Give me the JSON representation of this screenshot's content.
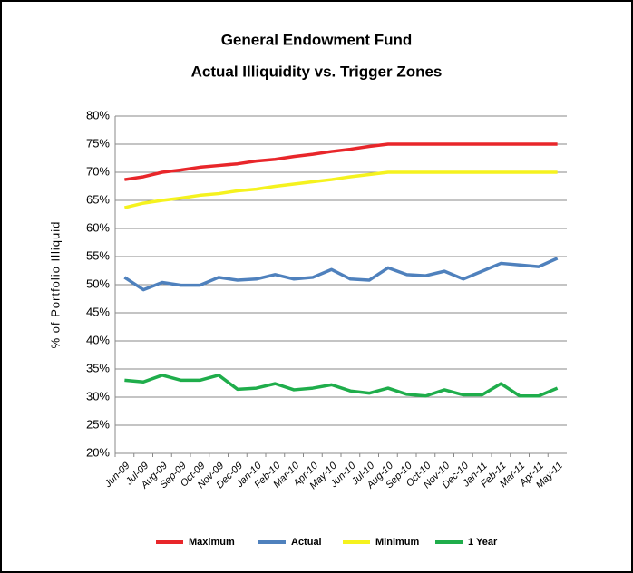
{
  "chart_data": {
    "type": "line",
    "title": "General Endowment Fund",
    "subtitle": "Actual Illiquidity vs. Trigger Zones",
    "y_label": "% of Portfolio Illiquid",
    "categories": [
      "Jun-09",
      "Jul-09",
      "Aug-09",
      "Sep-09",
      "Oct-09",
      "Nov-09",
      "Dec-09",
      "Jan-10",
      "Feb-10",
      "Mar-10",
      "Apr-10",
      "May-10",
      "Jun-10",
      "Jul-10",
      "Aug-10",
      "Sep-10",
      "Oct-10",
      "Nov-10",
      "Dec-10",
      "Jan-11",
      "Feb-11",
      "Mar-11",
      "Apr-11",
      "May-11"
    ],
    "series": [
      {
        "name": "Maximum",
        "color": "#e8262a",
        "values": [
          68.7,
          69.2,
          70,
          70.4,
          70.9,
          71.2,
          71.5,
          72,
          72.3,
          72.8,
          73.2,
          73.7,
          74.1,
          74.6,
          75,
          75,
          75,
          75,
          75,
          75,
          75,
          75,
          75,
          75
        ]
      },
      {
        "name": "Actual",
        "color": "#4f81bd",
        "values": [
          51.3,
          49.1,
          50.4,
          49.9,
          49.9,
          51.3,
          50.8,
          51,
          51.8,
          51,
          51.3,
          52.7,
          51,
          50.8,
          53,
          51.8,
          51.6,
          52.4,
          51,
          52.4,
          53.8,
          53.5,
          53.2,
          54.7
        ]
      },
      {
        "name": "Minimum",
        "color": "#f5f21e",
        "values": [
          63.7,
          64.5,
          65,
          65.4,
          65.9,
          66.2,
          66.7,
          67,
          67.5,
          67.9,
          68.3,
          68.7,
          69.2,
          69.6,
          70,
          70,
          70,
          70,
          70,
          70,
          70,
          70,
          70,
          70
        ]
      },
      {
        "name": "1 Year",
        "color": "#1fad4b",
        "values": [
          33,
          32.7,
          33.9,
          33,
          33,
          33.9,
          31.4,
          31.6,
          32.4,
          31.3,
          31.6,
          32.2,
          31.1,
          30.7,
          31.6,
          30.5,
          30.2,
          31.3,
          30.4,
          30.4,
          32.4,
          30.2,
          30.2,
          31.6
        ]
      }
    ],
    "ylim": [
      20,
      80
    ],
    "yticks": [
      {
        "value": 20,
        "label": "20%"
      },
      {
        "value": 25,
        "label": "25%"
      },
      {
        "value": 30,
        "label": "30%"
      },
      {
        "value": 35,
        "label": "35%"
      },
      {
        "value": 40,
        "label": "40%"
      },
      {
        "value": 45,
        "label": "45%"
      },
      {
        "value": 50,
        "label": "50%"
      },
      {
        "value": 55,
        "label": "55%"
      },
      {
        "value": 60,
        "label": "60%"
      },
      {
        "value": 65,
        "label": "65%"
      },
      {
        "value": 70,
        "label": "70%"
      },
      {
        "value": 75,
        "label": "75%"
      },
      {
        "value": 80,
        "label": "80%"
      }
    ],
    "grid": true,
    "legend": "bottom"
  }
}
